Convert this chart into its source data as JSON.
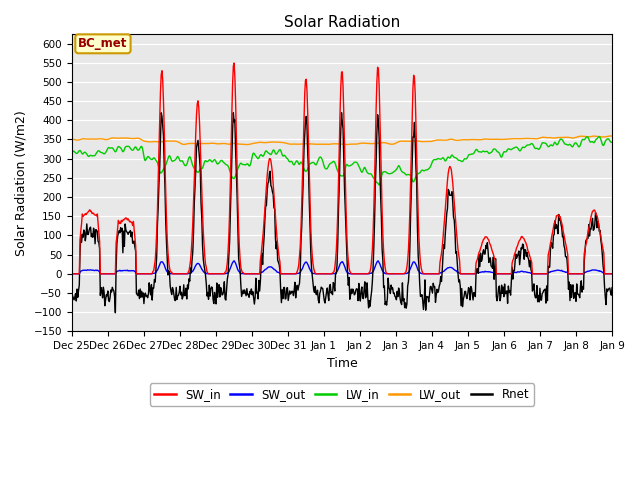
{
  "title": "Solar Radiation",
  "xlabel": "Time",
  "ylabel": "Solar Radiation (W/m2)",
  "ylim": [
    -150,
    625
  ],
  "yticks": [
    -150,
    -100,
    -50,
    0,
    50,
    100,
    150,
    200,
    250,
    300,
    350,
    400,
    450,
    500,
    550,
    600
  ],
  "annotation_text": "BC_met",
  "annotation_bg": "#ffffcc",
  "annotation_edge": "#cc9900",
  "annotation_text_color": "#990000",
  "fig_bg": "#ffffff",
  "plot_bg": "#e8e8e8",
  "grid_color": "#ffffff",
  "series": {
    "SW_in": {
      "color": "#ff0000",
      "lw": 1.0
    },
    "SW_out": {
      "color": "#0000ff",
      "lw": 1.0
    },
    "LW_in": {
      "color": "#00cc00",
      "lw": 1.0
    },
    "LW_out": {
      "color": "#ff9900",
      "lw": 1.0
    },
    "Rnet": {
      "color": "#000000",
      "lw": 1.0
    }
  },
  "xtick_labels": [
    "Dec 25",
    "Dec 26",
    "Dec 27",
    "Dec 28",
    "Dec 29",
    "Dec 30",
    "Dec 31",
    "Jan 1",
    "Jan 2",
    "Jan 3",
    "Jan 4",
    "Jan 5",
    "Jan 6",
    "Jan 7",
    "Jan 8",
    "Jan 9"
  ],
  "n_days": 15
}
